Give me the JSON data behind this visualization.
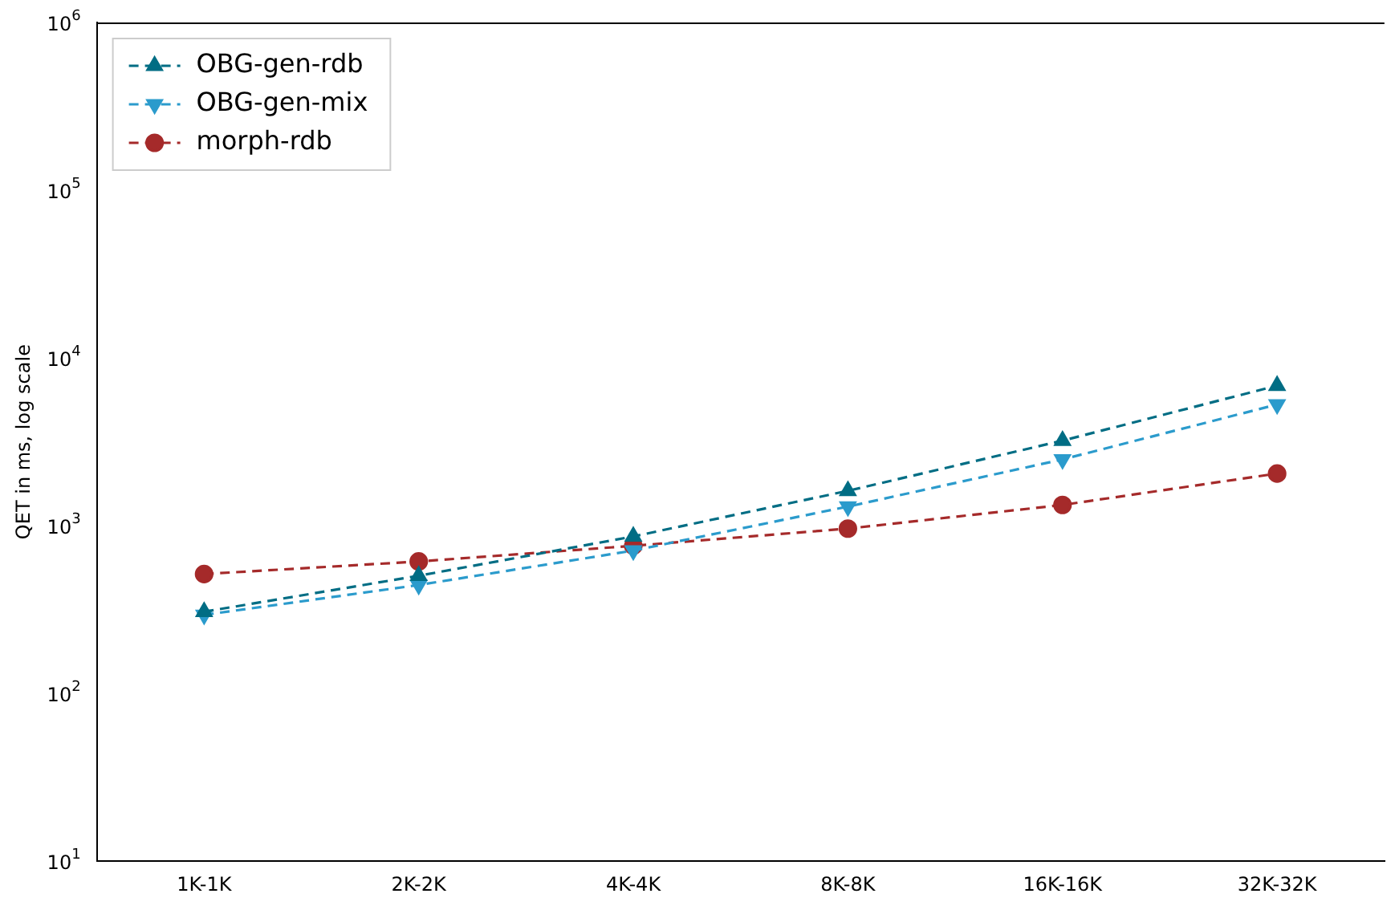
{
  "chart_data": {
    "type": "line",
    "ylabel": "QET in ms, log scale",
    "log": "y",
    "categories": [
      "1K-1K",
      "2K-2K",
      "4K-4K",
      "8K-8K",
      "16K-16K",
      "32K-32K"
    ],
    "ylim": [
      10,
      1000000
    ],
    "yticks": [
      {
        "value": 10,
        "label": "10$^{1}$"
      },
      {
        "value": 100,
        "label": "10$^{2}$"
      },
      {
        "value": 1000,
        "label": "10$^{3}$"
      },
      {
        "value": 10000,
        "label": "10$^{4}$"
      },
      {
        "value": 100000,
        "label": "10$^{5}$"
      },
      {
        "value": 1000000,
        "label": "10$^{6}$"
      }
    ],
    "series": [
      {
        "name": "OBG-gen-rdb",
        "color": "#006d84",
        "marker": "triangle",
        "values": [
          307,
          503,
          863,
          1614,
          3215,
          6840
        ]
      },
      {
        "name": "OBG-gen-mix",
        "color": "#2b9bcc",
        "marker": "triangle-down",
        "values": [
          294,
          443,
          711,
          1300,
          2484,
          5280
        ]
      },
      {
        "name": "morph-rdb",
        "color": "#a52a2a",
        "marker": "circle",
        "values": [
          515,
          612,
          759,
          961,
          1330,
          2046
        ]
      }
    ],
    "line_style": "dashed",
    "grid": false,
    "legend": "top left"
  }
}
